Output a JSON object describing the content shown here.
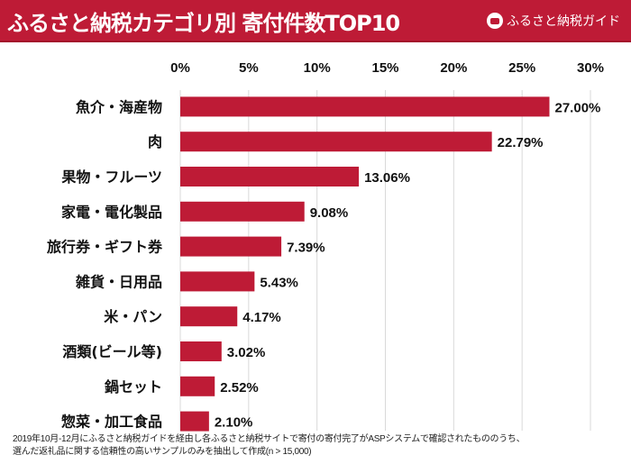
{
  "header": {
    "title": "ふるさと納税カテゴリ別 寄付件数TOP10",
    "logo_text": "ふるさと納税ガイド"
  },
  "chart_data": {
    "type": "bar",
    "orientation": "horizontal",
    "title": "ふるさと納税カテゴリ別 寄付件数TOP10",
    "categories": [
      "魚介・海産物",
      "肉",
      "果物・フルーツ",
      "家電・電化製品",
      "旅行券・ギフト券",
      "雑貨・日用品",
      "米・パン",
      "酒類(ビール等)",
      "鍋セット",
      "惣菜・加工食品"
    ],
    "values": [
      27.0,
      22.79,
      13.06,
      9.08,
      7.39,
      5.43,
      4.17,
      3.02,
      2.52,
      2.1
    ],
    "data_labels": [
      "27.00%",
      "22.79%",
      "13.06%",
      "9.08%",
      "7.39%",
      "5.43%",
      "4.17%",
      "3.02%",
      "2.52%",
      "2.10%"
    ],
    "xlim": [
      0,
      30
    ],
    "x_ticks": [
      "0%",
      "5%",
      "10%",
      "15%",
      "20%",
      "25%",
      "30%"
    ],
    "x_axis_position": "top",
    "grid": true,
    "bar_color": "#be1b36"
  },
  "footnote": {
    "line1": "2019年10月-12月にふるさと納税ガイドを経由し各ふるさと納税サイトで寄付の寄付完了がASPシステムで確認されたもののうち、",
    "line2": "選んだ返礼品に関する信頼性の高いサンプルのみを抽出して作成(n > 15,000)"
  }
}
